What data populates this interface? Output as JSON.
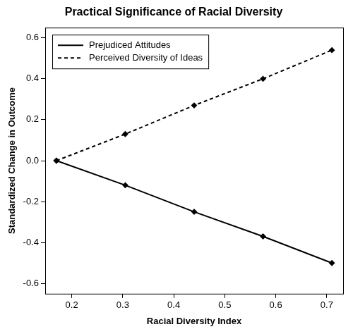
{
  "chart_data": {
    "type": "line",
    "title": "Practical Significance of Racial Diversity",
    "x_label": "Racial Diversity Index",
    "y_label": "Standardized Change in Outcome",
    "x": [
      0.17,
      0.305,
      0.44,
      0.575,
      0.71
    ],
    "series": [
      {
        "name": "Prejudiced Attitudes",
        "color": "#000000",
        "line_style": "solid",
        "marker": "diamond",
        "values": [
          0,
          -0.12,
          -0.25,
          -0.37,
          -0.5
        ]
      },
      {
        "name": "Perceived Diversity of Ideas",
        "color": "#000000",
        "line_style": "dashed",
        "marker": "diamond",
        "values": [
          0,
          0.13,
          0.27,
          0.4,
          0.54
        ]
      }
    ],
    "xlim": [
      0.148,
      0.732
    ],
    "ylim": [
      -0.65,
      0.65
    ],
    "xticks": [
      0.2,
      0.3,
      0.4,
      0.5,
      0.6,
      0.7
    ],
    "yticks": [
      -0.6,
      -0.4,
      -0.2,
      {
        "value": 0,
        "label": "0.0"
      },
      0.2,
      0.4,
      0.6
    ],
    "grid": false,
    "legend": "upper left"
  }
}
